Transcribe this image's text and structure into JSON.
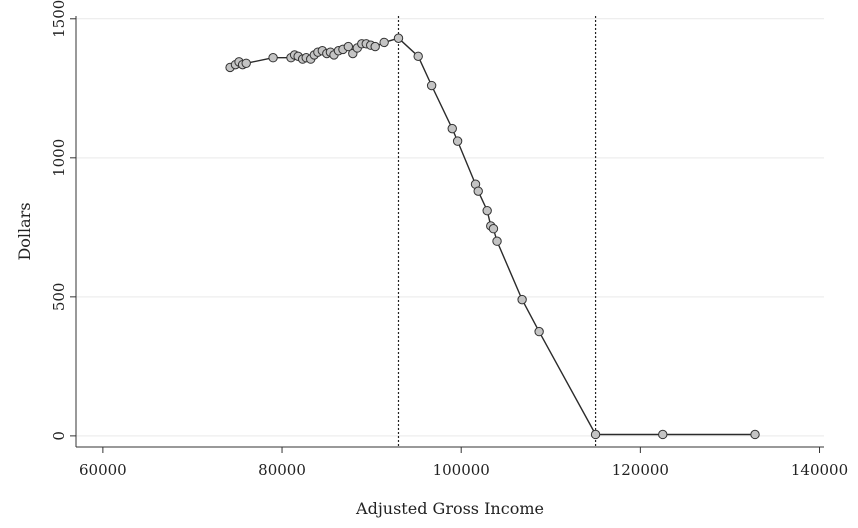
{
  "chart_data": {
    "type": "line",
    "title": "",
    "xlabel": "Adjusted Gross Income",
    "ylabel": "Dollars",
    "xlim": [
      57000,
      140500
    ],
    "ylim": [
      -40,
      1510
    ],
    "xticks": [
      60000,
      80000,
      100000,
      120000,
      140000
    ],
    "xtick_labels": [
      "60000",
      "80000",
      "100000",
      "120000",
      "140000"
    ],
    "yticks": [
      0,
      500,
      1000,
      1500
    ],
    "ytick_labels": [
      "0",
      "500",
      "1000",
      "1500"
    ],
    "grid": "horizontal",
    "vertical_reference_lines": [
      93000,
      115000
    ],
    "series": [
      {
        "x": [
          74200,
          74800,
          75200,
          75600,
          76000,
          79000,
          81000,
          81400,
          81800,
          82300,
          82700,
          83200,
          83600,
          84000,
          84500,
          85000,
          85400,
          85800,
          86300,
          86800,
          87400,
          87900,
          88400,
          88900,
          89400,
          89900,
          90400,
          91400,
          93000,
          95200,
          96700,
          99000,
          99600,
          101600,
          101900,
          102900,
          103300,
          103600,
          104000,
          106800,
          108700,
          115000,
          122500,
          132800
        ],
        "y": [
          1325,
          1335,
          1345,
          1335,
          1340,
          1360,
          1360,
          1370,
          1365,
          1355,
          1360,
          1355,
          1370,
          1380,
          1385,
          1375,
          1380,
          1370,
          1385,
          1390,
          1400,
          1375,
          1395,
          1410,
          1410,
          1405,
          1400,
          1415,
          1430,
          1365,
          1260,
          1105,
          1060,
          905,
          880,
          810,
          755,
          745,
          700,
          490,
          375,
          5,
          5,
          5
        ]
      }
    ],
    "colors": {
      "line": "#2b2b2b",
      "marker_fill": "#c4c4c4",
      "marker_stroke": "#333333",
      "grid": "#e9e9e9",
      "axis": "#333333"
    }
  }
}
